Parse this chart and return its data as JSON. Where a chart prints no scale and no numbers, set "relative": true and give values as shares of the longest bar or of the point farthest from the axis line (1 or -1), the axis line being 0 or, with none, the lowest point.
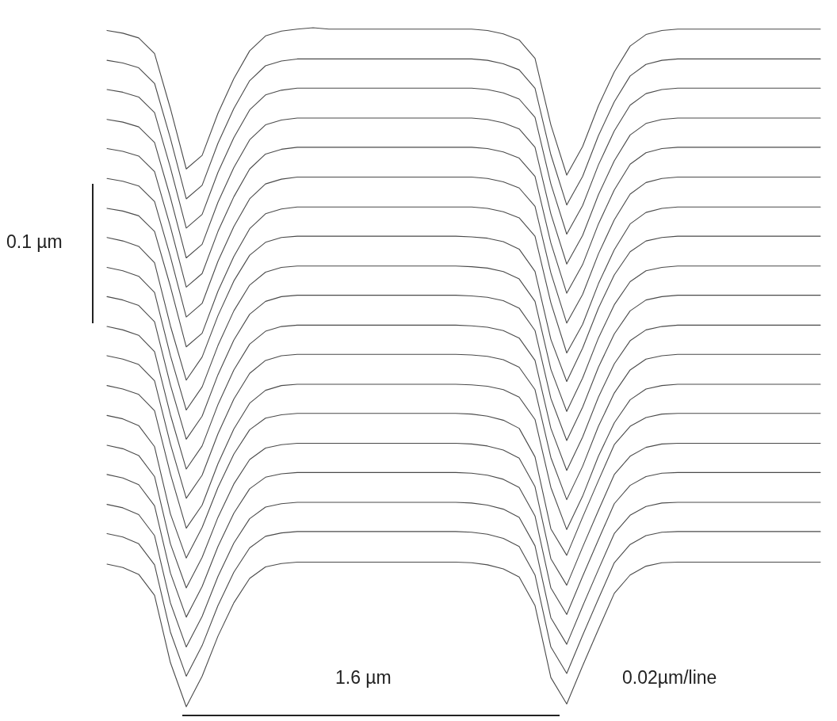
{
  "chart_data": {
    "type": "line",
    "relative": true,
    "categories": [
      null,
      null,
      null,
      null,
      null,
      null,
      null,
      null,
      null,
      null,
      null,
      null,
      null,
      null,
      null,
      null,
      null,
      null,
      null,
      null,
      null,
      null,
      null,
      null,
      null,
      null,
      null,
      null,
      null,
      null,
      null,
      null,
      null,
      null,
      null,
      null,
      null,
      null,
      null,
      null,
      null,
      null,
      null,
      null,
      null,
      null
    ],
    "annotations": [
      "0.1 µm",
      "1.6 µm",
      "0.02µm/line"
    ],
    "series": [
      {
        "color": "#4a4a4a",
        "values": [
          0.996,
          0.992,
          0.985,
          0.962,
          0.881,
          0.792,
          0.812,
          0.874,
          0.925,
          0.966,
          0.988,
          0.995,
          0.998,
          1.0,
          0.998,
          0.998,
          0.998,
          0.998,
          0.998,
          0.998,
          0.998,
          0.998,
          0.998,
          0.998,
          0.996,
          0.991,
          0.982,
          0.955,
          0.857,
          0.783,
          0.825,
          0.885,
          0.935,
          0.973,
          0.99,
          0.996,
          0.998,
          0.998,
          0.998,
          0.998,
          0.998,
          0.998,
          0.998,
          0.998,
          0.998,
          0.998
        ]
      },
      {
        "color": "#4a4a4a",
        "values": [
          0.952,
          0.948,
          0.941,
          0.918,
          0.837,
          0.748,
          0.768,
          0.83,
          0.881,
          0.922,
          0.944,
          0.951,
          0.954,
          0.954,
          0.954,
          0.954,
          0.954,
          0.954,
          0.954,
          0.954,
          0.954,
          0.954,
          0.954,
          0.954,
          0.952,
          0.947,
          0.938,
          0.911,
          0.813,
          0.739,
          0.781,
          0.841,
          0.891,
          0.929,
          0.946,
          0.952,
          0.954,
          0.954,
          0.954,
          0.954,
          0.954,
          0.954,
          0.954,
          0.954,
          0.954,
          0.954
        ]
      },
      {
        "color": "#4a4a4a",
        "values": [
          0.909,
          0.905,
          0.898,
          0.875,
          0.794,
          0.705,
          0.725,
          0.787,
          0.838,
          0.879,
          0.901,
          0.908,
          0.911,
          0.911,
          0.911,
          0.911,
          0.911,
          0.911,
          0.911,
          0.911,
          0.911,
          0.911,
          0.911,
          0.911,
          0.909,
          0.904,
          0.895,
          0.868,
          0.77,
          0.696,
          0.738,
          0.798,
          0.848,
          0.886,
          0.903,
          0.909,
          0.911,
          0.911,
          0.911,
          0.911,
          0.911,
          0.911,
          0.911,
          0.911,
          0.911,
          0.911
        ]
      },
      {
        "color": "#4a4a4a",
        "values": [
          0.865,
          0.861,
          0.854,
          0.831,
          0.75,
          0.661,
          0.681,
          0.743,
          0.794,
          0.835,
          0.857,
          0.864,
          0.867,
          0.867,
          0.867,
          0.867,
          0.867,
          0.867,
          0.867,
          0.867,
          0.867,
          0.867,
          0.867,
          0.867,
          0.865,
          0.86,
          0.851,
          0.824,
          0.726,
          0.652,
          0.694,
          0.754,
          0.804,
          0.842,
          0.859,
          0.865,
          0.867,
          0.867,
          0.867,
          0.867,
          0.867,
          0.867,
          0.867,
          0.867,
          0.867,
          0.867
        ]
      },
      {
        "color": "#4a4a4a",
        "values": [
          0.822,
          0.818,
          0.811,
          0.788,
          0.707,
          0.618,
          0.638,
          0.7,
          0.751,
          0.792,
          0.814,
          0.821,
          0.824,
          0.824,
          0.824,
          0.824,
          0.824,
          0.824,
          0.824,
          0.824,
          0.824,
          0.824,
          0.824,
          0.824,
          0.822,
          0.817,
          0.808,
          0.781,
          0.683,
          0.609,
          0.651,
          0.711,
          0.761,
          0.799,
          0.816,
          0.822,
          0.824,
          0.824,
          0.824,
          0.824,
          0.824,
          0.824,
          0.824,
          0.824,
          0.824,
          0.824
        ]
      },
      {
        "color": "#4a4a4a",
        "values": [
          0.778,
          0.774,
          0.767,
          0.744,
          0.663,
          0.574,
          0.594,
          0.656,
          0.707,
          0.748,
          0.77,
          0.777,
          0.78,
          0.78,
          0.78,
          0.78,
          0.78,
          0.78,
          0.78,
          0.78,
          0.78,
          0.78,
          0.78,
          0.78,
          0.778,
          0.773,
          0.764,
          0.737,
          0.639,
          0.565,
          0.607,
          0.667,
          0.717,
          0.755,
          0.772,
          0.778,
          0.78,
          0.78,
          0.78,
          0.78,
          0.78,
          0.78,
          0.78,
          0.78,
          0.78,
          0.78
        ]
      },
      {
        "color": "#4a4a4a",
        "values": [
          0.734,
          0.73,
          0.723,
          0.7,
          0.619,
          0.53,
          0.55,
          0.612,
          0.663,
          0.704,
          0.726,
          0.733,
          0.736,
          0.736,
          0.736,
          0.736,
          0.736,
          0.736,
          0.736,
          0.736,
          0.736,
          0.736,
          0.736,
          0.736,
          0.734,
          0.729,
          0.72,
          0.693,
          0.595,
          0.521,
          0.563,
          0.623,
          0.673,
          0.711,
          0.728,
          0.734,
          0.736,
          0.736,
          0.736,
          0.736,
          0.736,
          0.736,
          0.736,
          0.736,
          0.736,
          0.736
        ]
      },
      {
        "color": "#4a4a4a",
        "values": [
          0.691,
          0.686,
          0.678,
          0.654,
          0.561,
          0.481,
          0.515,
          0.576,
          0.627,
          0.665,
          0.684,
          0.691,
          0.693,
          0.693,
          0.693,
          0.693,
          0.693,
          0.693,
          0.693,
          0.693,
          0.693,
          0.693,
          0.693,
          0.692,
          0.69,
          0.685,
          0.674,
          0.641,
          0.541,
          0.479,
          0.528,
          0.587,
          0.636,
          0.67,
          0.686,
          0.691,
          0.693,
          0.693,
          0.693,
          0.693,
          0.693,
          0.693,
          0.693,
          0.693,
          0.693,
          0.693
        ]
      },
      {
        "color": "#4a4a4a",
        "values": [
          0.647,
          0.642,
          0.634,
          0.61,
          0.517,
          0.437,
          0.471,
          0.532,
          0.583,
          0.621,
          0.64,
          0.647,
          0.649,
          0.649,
          0.649,
          0.649,
          0.649,
          0.649,
          0.649,
          0.649,
          0.649,
          0.649,
          0.649,
          0.648,
          0.646,
          0.641,
          0.63,
          0.597,
          0.497,
          0.435,
          0.484,
          0.543,
          0.592,
          0.626,
          0.642,
          0.647,
          0.649,
          0.649,
          0.649,
          0.649,
          0.649,
          0.649,
          0.649,
          0.649,
          0.649,
          0.649
        ]
      },
      {
        "color": "#4a4a4a",
        "values": [
          0.604,
          0.599,
          0.591,
          0.567,
          0.474,
          0.394,
          0.428,
          0.489,
          0.54,
          0.578,
          0.597,
          0.604,
          0.606,
          0.606,
          0.606,
          0.606,
          0.606,
          0.606,
          0.606,
          0.606,
          0.606,
          0.606,
          0.606,
          0.605,
          0.603,
          0.598,
          0.587,
          0.554,
          0.454,
          0.392,
          0.441,
          0.5,
          0.549,
          0.583,
          0.599,
          0.604,
          0.606,
          0.606,
          0.606,
          0.606,
          0.606,
          0.606,
          0.606,
          0.606,
          0.606,
          0.606
        ]
      },
      {
        "color": "#4a4a4a",
        "values": [
          0.56,
          0.555,
          0.547,
          0.523,
          0.43,
          0.35,
          0.384,
          0.445,
          0.496,
          0.534,
          0.553,
          0.56,
          0.562,
          0.562,
          0.562,
          0.562,
          0.562,
          0.562,
          0.562,
          0.562,
          0.562,
          0.562,
          0.562,
          0.561,
          0.559,
          0.554,
          0.543,
          0.51,
          0.41,
          0.348,
          0.397,
          0.456,
          0.505,
          0.539,
          0.555,
          0.56,
          0.562,
          0.562,
          0.562,
          0.562,
          0.562,
          0.562,
          0.562,
          0.562,
          0.562,
          0.562
        ]
      },
      {
        "color": "#4a4a4a",
        "values": [
          0.517,
          0.512,
          0.504,
          0.48,
          0.387,
          0.307,
          0.341,
          0.402,
          0.453,
          0.491,
          0.51,
          0.517,
          0.519,
          0.519,
          0.519,
          0.519,
          0.519,
          0.519,
          0.519,
          0.519,
          0.519,
          0.519,
          0.519,
          0.518,
          0.516,
          0.511,
          0.5,
          0.467,
          0.367,
          0.305,
          0.354,
          0.413,
          0.462,
          0.496,
          0.512,
          0.517,
          0.519,
          0.519,
          0.519,
          0.519,
          0.519,
          0.519,
          0.519,
          0.519,
          0.519,
          0.519
        ]
      },
      {
        "color": "#4a4a4a",
        "values": [
          0.473,
          0.468,
          0.46,
          0.436,
          0.343,
          0.263,
          0.297,
          0.358,
          0.409,
          0.447,
          0.466,
          0.473,
          0.475,
          0.475,
          0.475,
          0.475,
          0.475,
          0.475,
          0.475,
          0.475,
          0.475,
          0.475,
          0.475,
          0.474,
          0.472,
          0.467,
          0.456,
          0.423,
          0.323,
          0.261,
          0.31,
          0.369,
          0.418,
          0.452,
          0.468,
          0.473,
          0.475,
          0.475,
          0.475,
          0.475,
          0.475,
          0.475,
          0.475,
          0.475,
          0.475,
          0.475
        ]
      },
      {
        "color": "#4a4a4a",
        "values": [
          0.429,
          0.424,
          0.414,
          0.383,
          0.284,
          0.219,
          0.264,
          0.323,
          0.372,
          0.408,
          0.425,
          0.43,
          0.432,
          0.432,
          0.432,
          0.432,
          0.432,
          0.432,
          0.432,
          0.432,
          0.432,
          0.432,
          0.432,
          0.431,
          0.428,
          0.422,
          0.41,
          0.368,
          0.262,
          0.223,
          0.279,
          0.333,
          0.386,
          0.413,
          0.426,
          0.431,
          0.432,
          0.432,
          0.432,
          0.432,
          0.432,
          0.432,
          0.432,
          0.432,
          0.432,
          0.432
        ]
      },
      {
        "color": "#4a4a4a",
        "values": [
          0.385,
          0.38,
          0.37,
          0.339,
          0.24,
          0.175,
          0.22,
          0.279,
          0.328,
          0.364,
          0.381,
          0.386,
          0.388,
          0.388,
          0.388,
          0.388,
          0.388,
          0.388,
          0.388,
          0.388,
          0.388,
          0.388,
          0.388,
          0.387,
          0.384,
          0.378,
          0.366,
          0.324,
          0.218,
          0.179,
          0.235,
          0.289,
          0.342,
          0.369,
          0.382,
          0.387,
          0.388,
          0.388,
          0.388,
          0.388,
          0.388,
          0.388,
          0.388,
          0.388,
          0.388,
          0.388
        ]
      },
      {
        "color": "#4a4a4a",
        "values": [
          0.342,
          0.337,
          0.327,
          0.296,
          0.197,
          0.132,
          0.177,
          0.236,
          0.285,
          0.321,
          0.338,
          0.343,
          0.345,
          0.345,
          0.345,
          0.345,
          0.345,
          0.345,
          0.345,
          0.345,
          0.345,
          0.345,
          0.345,
          0.344,
          0.341,
          0.335,
          0.323,
          0.281,
          0.175,
          0.136,
          0.192,
          0.246,
          0.299,
          0.326,
          0.339,
          0.344,
          0.345,
          0.345,
          0.345,
          0.345,
          0.345,
          0.345,
          0.345,
          0.345,
          0.345,
          0.345
        ]
      },
      {
        "color": "#4a4a4a",
        "values": [
          0.298,
          0.293,
          0.283,
          0.252,
          0.153,
          0.088,
          0.133,
          0.192,
          0.241,
          0.277,
          0.294,
          0.299,
          0.301,
          0.301,
          0.301,
          0.301,
          0.301,
          0.301,
          0.301,
          0.301,
          0.301,
          0.301,
          0.301,
          0.3,
          0.297,
          0.291,
          0.279,
          0.237,
          0.131,
          0.092,
          0.148,
          0.202,
          0.255,
          0.282,
          0.295,
          0.3,
          0.301,
          0.301,
          0.301,
          0.301,
          0.301,
          0.301,
          0.301,
          0.301,
          0.301,
          0.301
        ]
      },
      {
        "color": "#4a4a4a",
        "values": [
          0.255,
          0.25,
          0.24,
          0.209,
          0.11,
          0.045,
          0.09,
          0.149,
          0.198,
          0.234,
          0.251,
          0.256,
          0.258,
          0.258,
          0.258,
          0.258,
          0.258,
          0.258,
          0.258,
          0.258,
          0.258,
          0.258,
          0.258,
          0.257,
          0.254,
          0.248,
          0.236,
          0.194,
          0.088,
          0.049,
          0.105,
          0.159,
          0.212,
          0.239,
          0.252,
          0.257,
          0.258,
          0.258,
          0.258,
          0.258,
          0.258,
          0.258,
          0.258,
          0.258,
          0.258,
          0.258
        ]
      },
      {
        "color": "#4a4a4a",
        "values": [
          0.21,
          0.205,
          0.195,
          0.164,
          0.065,
          0.0,
          0.045,
          0.104,
          0.153,
          0.189,
          0.206,
          0.211,
          0.213,
          0.213,
          0.213,
          0.213,
          0.213,
          0.213,
          0.213,
          0.213,
          0.213,
          0.213,
          0.213,
          0.212,
          0.209,
          0.203,
          0.191,
          0.149,
          0.043,
          0.004,
          0.06,
          0.114,
          0.167,
          0.194,
          0.207,
          0.212,
          0.213,
          0.213,
          0.213,
          0.213,
          0.213,
          0.213,
          0.213,
          0.213,
          0.213,
          0.213
        ]
      }
    ]
  }
}
